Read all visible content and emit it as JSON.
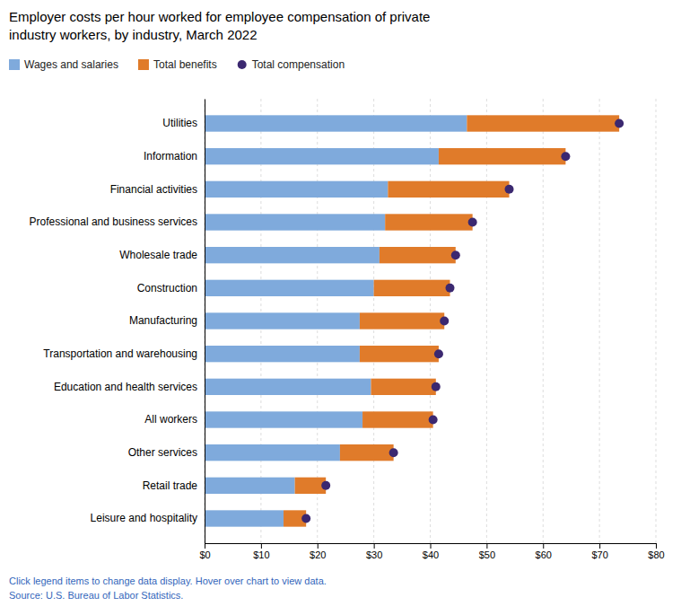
{
  "chart_data": {
    "type": "bar",
    "orientation": "horizontal",
    "stacked": true,
    "title": "Employer costs per hour worked for employee compensation of private\nindustry workers, by industry, March 2022",
    "categories": [
      "Utilities",
      "Information",
      "Financial activities",
      "Professional and business services",
      "Wholesale trade",
      "Construction",
      "Manufacturing",
      "Transportation and warehousing",
      "Education and health services",
      "All workers",
      "Other services",
      "Retail trade",
      "Leisure and hospitality"
    ],
    "series": [
      {
        "name": "Wages and salaries",
        "color": "#7faadc",
        "values": [
          46.5,
          41.5,
          32.5,
          32.0,
          31.0,
          30.0,
          27.5,
          27.5,
          29.5,
          28.0,
          24.0,
          16.0,
          14.0
        ]
      },
      {
        "name": "Total benefits",
        "color": "#e07b2a",
        "values": [
          27.0,
          22.5,
          21.5,
          15.5,
          13.5,
          13.5,
          15.0,
          14.0,
          11.5,
          12.5,
          9.5,
          5.5,
          4.0
        ]
      },
      {
        "name": "Total compensation",
        "type": "scatter",
        "marker": "circle",
        "color": "#3b2870",
        "values": [
          73.5,
          64.0,
          54.0,
          47.5,
          44.5,
          43.5,
          42.5,
          41.5,
          41.0,
          40.5,
          33.5,
          21.5,
          18.0
        ]
      }
    ],
    "xlim": [
      0,
      80
    ],
    "xticks": [
      {
        "value": 0,
        "label": "$0"
      },
      {
        "value": 10,
        "label": "$10"
      },
      {
        "value": 20,
        "label": "$20"
      },
      {
        "value": 30,
        "label": "$30"
      },
      {
        "value": 40,
        "label": "$40"
      },
      {
        "value": 50,
        "label": "$50"
      },
      {
        "value": 60,
        "label": "$60"
      },
      {
        "value": 70,
        "label": "$70"
      },
      {
        "value": 80,
        "label": "$80"
      }
    ],
    "grid": true,
    "legend": "top",
    "annotations": [
      "Click legend items to change data display. Hover over chart to view data.\nSource: U.S. Bureau of Labor Statistics."
    ]
  }
}
